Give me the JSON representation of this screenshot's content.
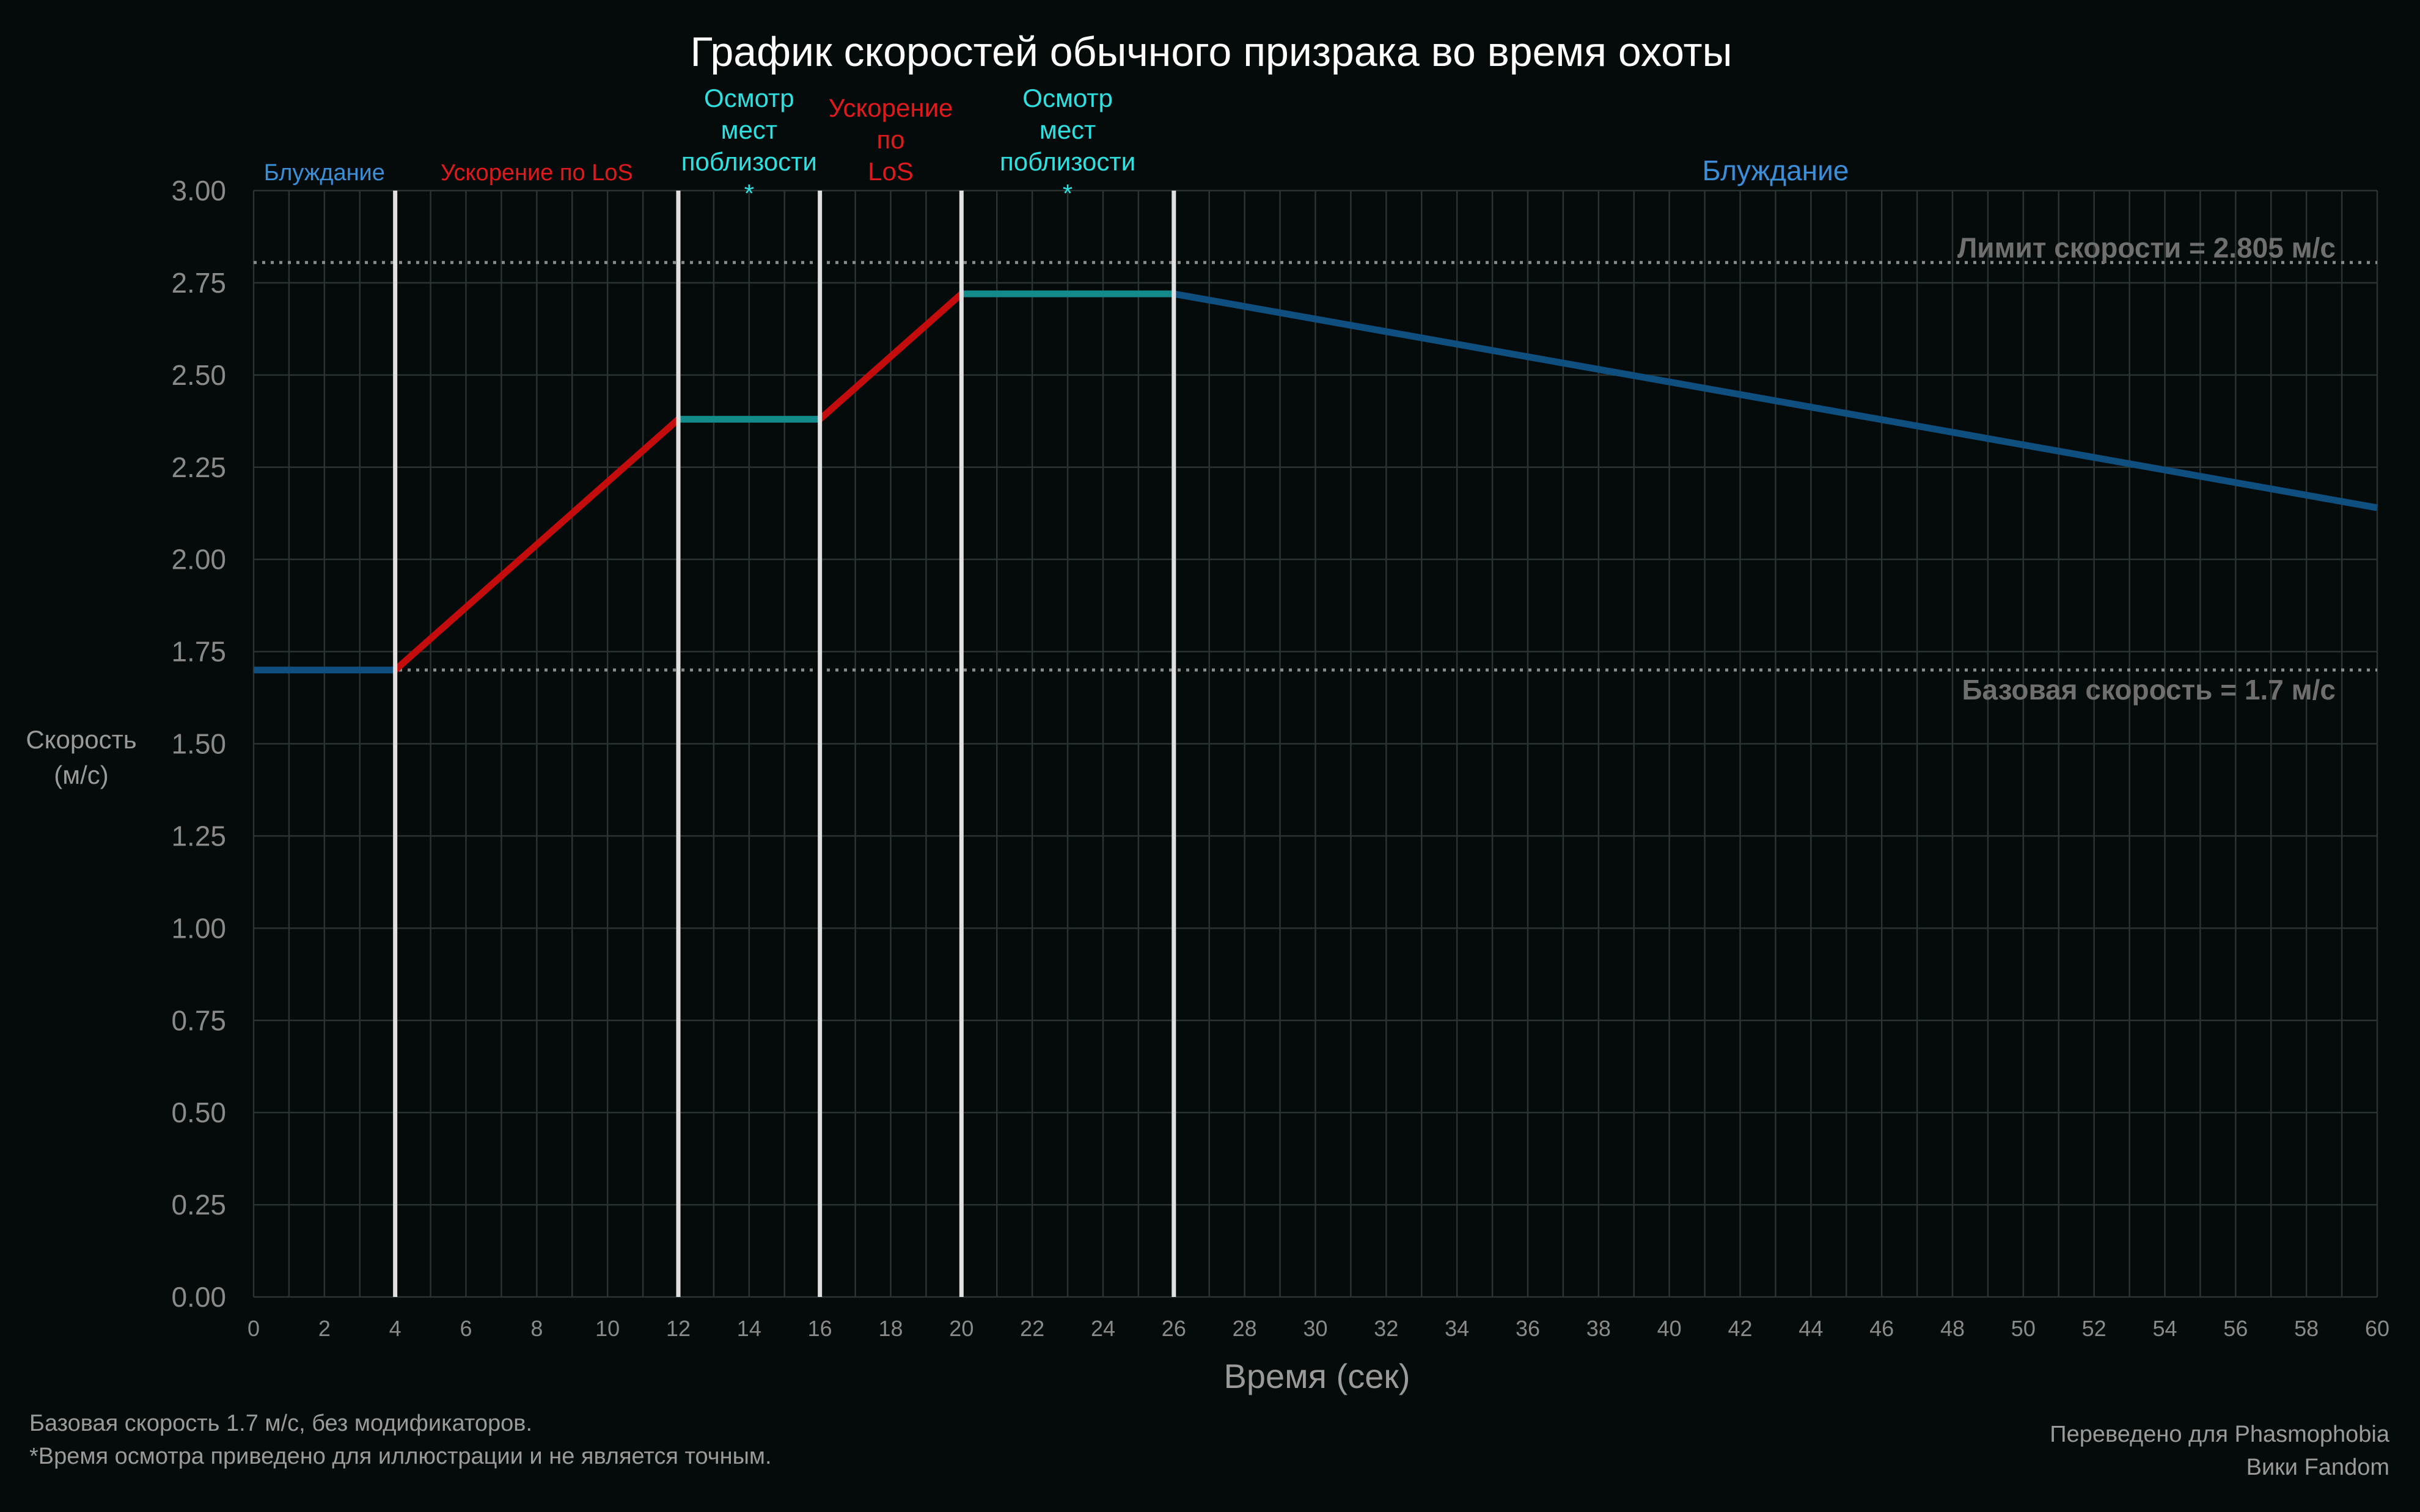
{
  "chart_data": {
    "type": "line",
    "title": "График скоростей обычного призрака во время охоты",
    "xlabel": "Время (сек)",
    "ylabel_lines": [
      "Скорость",
      "(м/с)"
    ],
    "xlim": [
      0,
      60
    ],
    "ylim": [
      0,
      3
    ],
    "x_ticks": [
      0,
      2,
      4,
      6,
      8,
      10,
      12,
      14,
      16,
      18,
      20,
      22,
      24,
      26,
      28,
      30,
      32,
      34,
      36,
      38,
      40,
      42,
      44,
      46,
      48,
      50,
      52,
      54,
      56,
      58,
      60
    ],
    "y_ticks": [
      "0.00",
      "0.25",
      "0.50",
      "0.75",
      "1.00",
      "1.25",
      "1.50",
      "1.75",
      "2.00",
      "2.25",
      "2.50",
      "2.75",
      "3.00"
    ],
    "grid": true,
    "segments": [
      {
        "phase": "wander",
        "color": "#0e4f80",
        "points": [
          [
            0,
            1.7
          ],
          [
            4,
            1.7
          ]
        ]
      },
      {
        "phase": "los",
        "color": "#c40c0c",
        "points": [
          [
            4,
            1.7
          ],
          [
            12,
            2.38
          ]
        ]
      },
      {
        "phase": "search",
        "color": "#148b8b",
        "points": [
          [
            12,
            2.38
          ],
          [
            16,
            2.38
          ]
        ]
      },
      {
        "phase": "los",
        "color": "#c40c0c",
        "points": [
          [
            16,
            2.38
          ],
          [
            20,
            2.72
          ]
        ]
      },
      {
        "phase": "search",
        "color": "#148b8b",
        "points": [
          [
            20,
            2.72
          ],
          [
            26,
            2.72
          ]
        ]
      },
      {
        "phase": "wander",
        "color": "#0e4f80",
        "points": [
          [
            26,
            2.72
          ],
          [
            60,
            2.14
          ]
        ]
      }
    ],
    "phase_boundaries": [
      4,
      12,
      16,
      20,
      26
    ],
    "reference_lines": [
      {
        "y": 2.805,
        "label": "Лимит скорости = 2.805 м/с"
      },
      {
        "y": 1.7,
        "label": "Базовая скорость = 1.7 м/с"
      }
    ],
    "phase_labels": [
      {
        "x": 2,
        "lines": [
          "Блуждание"
        ],
        "color": "#3a8fd8"
      },
      {
        "x": 8,
        "lines": [
          "Ускорение по LoS"
        ],
        "color": "#e01a1a"
      },
      {
        "x": 14,
        "lines": [
          "Осмотр",
          "мест",
          "поблизости",
          "*"
        ],
        "color": "#2ee0e0"
      },
      {
        "x": 18,
        "lines": [
          "Ускорение",
          "по",
          "LoS"
        ],
        "color": "#e01a1a"
      },
      {
        "x": 23,
        "lines": [
          "Осмотр",
          "мест",
          "поблизости",
          "*"
        ],
        "color": "#2ee0e0"
      },
      {
        "x": 43,
        "lines": [
          "Блуждание"
        ],
        "color": "#3a8fd8"
      }
    ]
  },
  "footnotes": {
    "line1": "Базовая скорость 1.7 м/с, без модификаторов.",
    "line2": "*Время осмотра приведено для иллюстрации и не является точным."
  },
  "credit": {
    "line1": "Переведено для Phasmophobia",
    "line2": "Вики Fandom"
  },
  "colors": {
    "background": "#050b0b",
    "grid": "#2a3232",
    "axis_text": "#8a8a8a",
    "title": "#ffffff",
    "boundary": "#e0e0e0"
  }
}
